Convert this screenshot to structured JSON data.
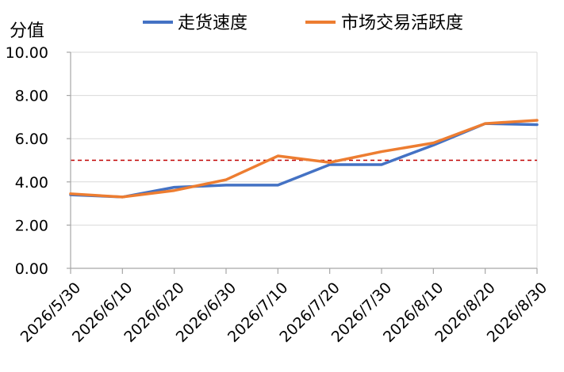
{
  "chart_data": {
    "type": "line",
    "ylabel": "分值",
    "categories": [
      "2026/5/30",
      "2026/6/10",
      "2026/6/20",
      "2026/6/30",
      "2026/7/10",
      "2026/7/20",
      "2026/7/30",
      "2026/8/10",
      "2026/8/20",
      "2026/8/30"
    ],
    "ylim": [
      0,
      10
    ],
    "y_ticks": [
      "0.00",
      "2.00",
      "4.00",
      "6.00",
      "8.00",
      "10.00"
    ],
    "grid": true,
    "legend_position": "top",
    "reference_line": {
      "y": 5,
      "color": "#C00000",
      "style": "dashed"
    },
    "series": [
      {
        "name": "走货速度",
        "color": "#4472C4",
        "values": [
          3.4,
          3.3,
          3.75,
          3.85,
          3.85,
          4.8,
          4.8,
          5.7,
          6.7,
          6.65
        ]
      },
      {
        "name": "市场交易活跃度",
        "color": "#ED7D31",
        "values": [
          3.45,
          3.3,
          3.6,
          4.1,
          5.2,
          4.9,
          5.4,
          5.8,
          6.7,
          6.85
        ]
      }
    ]
  }
}
